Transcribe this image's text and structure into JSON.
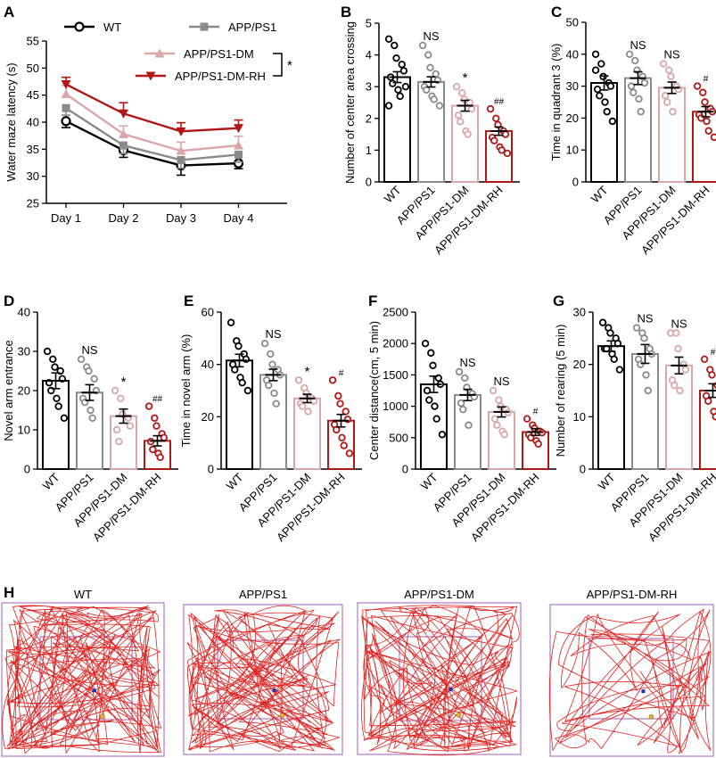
{
  "figure": {
    "colors": {
      "WT": "#000000",
      "APP/PS1": "#8a8a8a",
      "APP/PS1-DM": "#d9a7a7",
      "APP/PS1-DM-RH": "#b01818"
    }
  },
  "chart_data": [
    {
      "panel": "A",
      "type": "line",
      "categories": [
        "Day 1",
        "Day 2",
        "Day 3",
        "Day 4"
      ],
      "ylabel": "Water maze latency (s)",
      "ylim": [
        25,
        55
      ],
      "yticks": [
        25,
        30,
        35,
        40,
        45,
        50,
        55
      ],
      "series": [
        {
          "name": "WT",
          "values": [
            40.2,
            34.8,
            32.0,
            32.4
          ],
          "err": [
            1.2,
            1.3,
            1.8,
            1.0
          ],
          "marker": "circle-open"
        },
        {
          "name": "APP/PS1",
          "values": [
            42.6,
            35.7,
            33.0,
            34.0
          ],
          "err": [
            1.3,
            1.5,
            1.5,
            1.4
          ],
          "marker": "square"
        },
        {
          "name": "APP/PS1-DM",
          "values": [
            45.2,
            37.8,
            34.7,
            35.7
          ],
          "err": [
            1.6,
            1.5,
            1.6,
            1.7
          ],
          "marker": "triangle"
        },
        {
          "name": "APP/PS1-DM-RH",
          "values": [
            47.0,
            41.6,
            38.3,
            38.9
          ],
          "err": [
            1.3,
            2.0,
            1.6,
            1.5
          ],
          "marker": "triangle-down"
        }
      ],
      "annotation": "*"
    },
    {
      "panel": "B",
      "type": "bar",
      "ylabel": "Number of center area crossing",
      "ylim": [
        0,
        5
      ],
      "yticks": [
        0,
        1,
        2,
        3,
        4,
        5
      ],
      "categories": [
        "WT",
        "APP/PS1",
        "APP/PS1-DM",
        "APP/PS1-DM-RH"
      ],
      "values": [
        3.3,
        3.15,
        2.4,
        1.6
      ],
      "err": [
        0.17,
        0.16,
        0.17,
        0.13
      ],
      "sig": [
        "",
        "NS",
        "*",
        "##"
      ],
      "points": [
        [
          4.5,
          4.3,
          3.9,
          3.7,
          3.5,
          3.3,
          3.1,
          2.9,
          2.7,
          3.0,
          2.4
        ],
        [
          4.3,
          4.0,
          3.6,
          3.4,
          3.2,
          3.0,
          2.9,
          2.7,
          2.6,
          2.4
        ],
        [
          3.0,
          2.8,
          2.6,
          2.5,
          2.3,
          2.1,
          1.9,
          1.6,
          1.5
        ],
        [
          2.3,
          2.0,
          1.8,
          1.6,
          1.5,
          1.4,
          1.3,
          1.1,
          1.0,
          0.9
        ]
      ]
    },
    {
      "panel": "C",
      "type": "bar",
      "ylabel": "Time in quadrant 3 (%)",
      "ylim": [
        0,
        50
      ],
      "yticks": [
        0,
        10,
        20,
        30,
        40,
        50
      ],
      "categories": [
        "WT",
        "APP/PS1",
        "APP/PS1-DM",
        "APP/PS1-DM-RH"
      ],
      "values": [
        31,
        32.5,
        29.5,
        22
      ],
      "err": [
        2.2,
        2.0,
        1.8,
        1.6
      ],
      "sig": [
        "",
        "NS",
        "NS",
        "#"
      ],
      "points": [
        [
          40,
          37,
          33,
          31,
          30,
          29,
          27,
          25,
          22,
          19,
          35
        ],
        [
          40,
          38,
          35,
          33,
          31,
          30,
          28,
          26,
          22
        ],
        [
          37,
          35,
          33,
          30,
          29,
          27,
          25,
          22
        ],
        [
          30,
          28,
          25,
          23,
          22,
          21,
          20,
          19,
          16,
          14
        ]
      ]
    },
    {
      "panel": "D",
      "type": "bar",
      "ylabel": "Novel arm entrance",
      "ylim": [
        0,
        40
      ],
      "yticks": [
        0,
        10,
        20,
        30,
        40
      ],
      "categories": [
        "WT",
        "APP/PS1",
        "APP/PS1-DM",
        "APP/PS1-DM-RH"
      ],
      "values": [
        22.5,
        19.5,
        13.5,
        7.2
      ],
      "err": [
        2.0,
        2.0,
        1.8,
        1.3
      ],
      "sig": [
        "",
        "NS",
        "*",
        "##"
      ],
      "points": [
        [
          30,
          28,
          26,
          25,
          23,
          22,
          20,
          18,
          16,
          13
        ],
        [
          28,
          26,
          25,
          23,
          20,
          18,
          17,
          15,
          13
        ],
        [
          20,
          18,
          14,
          13,
          11,
          10,
          7
        ],
        [
          16,
          13,
          11,
          9,
          8,
          7,
          5,
          4,
          3
        ]
      ]
    },
    {
      "panel": "E",
      "type": "bar",
      "ylabel": "Time in novel arm (%)",
      "ylim": [
        0,
        60
      ],
      "yticks": [
        0,
        20,
        40,
        60
      ],
      "categories": [
        "WT",
        "APP/PS1",
        "APP/PS1-DM",
        "APP/PS1-DM-RH"
      ],
      "values": [
        41.5,
        36,
        27,
        18.5
      ],
      "err": [
        2.4,
        2.2,
        1.6,
        2.4
      ],
      "sig": [
        "",
        "NS",
        "*",
        "#"
      ],
      "points": [
        [
          56,
          49,
          47,
          44,
          42,
          40,
          38,
          35,
          33,
          30
        ],
        [
          48,
          44,
          40,
          38,
          36,
          34,
          32,
          29,
          25
        ],
        [
          34,
          31,
          29,
          27,
          26,
          25,
          24,
          22
        ],
        [
          34,
          28,
          25,
          22,
          19,
          17,
          15,
          12,
          9,
          6
        ]
      ]
    },
    {
      "panel": "F",
      "type": "bar",
      "ylabel": "Center distance(cm, 5 min)",
      "ylim": [
        0,
        2500
      ],
      "yticks": [
        0,
        500,
        1000,
        1500,
        2000,
        2500
      ],
      "categories": [
        "WT",
        "APP/PS1",
        "APP/PS1-DM",
        "APP/PS1-DM-RH"
      ],
      "values": [
        1350,
        1180,
        910,
        590
      ],
      "err": [
        130,
        90,
        80,
        55
      ],
      "sig": [
        "",
        "NS",
        "NS",
        "#"
      ],
      "points": [
        [
          2000,
          1850,
          1650,
          1450,
          1350,
          1250,
          1100,
          1000,
          800,
          550
        ],
        [
          1550,
          1450,
          1300,
          1200,
          1150,
          1050,
          950,
          700
        ],
        [
          1250,
          1100,
          1000,
          950,
          900,
          800,
          700,
          600,
          550
        ],
        [
          800,
          700,
          650,
          600,
          580,
          550,
          500,
          450,
          400
        ]
      ]
    },
    {
      "panel": "G",
      "type": "bar",
      "ylabel": "Number of rearing (5 min)",
      "ylim": [
        0,
        30
      ],
      "yticks": [
        0,
        10,
        20,
        30
      ],
      "categories": [
        "WT",
        "APP/PS1",
        "APP/PS1-DM",
        "APP/PS1-DM-RH"
      ],
      "values": [
        23.5,
        22,
        19.8,
        15
      ],
      "err": [
        1.0,
        1.8,
        1.6,
        1.3
      ],
      "sig": [
        "",
        "NS",
        "NS",
        "#"
      ],
      "points": [
        [
          28,
          27,
          26,
          25,
          24,
          23,
          23,
          22,
          21,
          19
        ],
        [
          27,
          26,
          25,
          23,
          22,
          21,
          20,
          18,
          15
        ],
        [
          26,
          26,
          23,
          20,
          19,
          17,
          16,
          15
        ],
        [
          21,
          19,
          18,
          16,
          15,
          14,
          13,
          11,
          10
        ]
      ]
    }
  ],
  "panels": {
    "A": "A",
    "B": "B",
    "C": "C",
    "D": "D",
    "E": "E",
    "F": "F",
    "G": "G",
    "H": "H"
  },
  "legend": {
    "wt": "WT",
    "app": "APP/PS1",
    "dm": "APP/PS1-DM",
    "rh": "APP/PS1-DM-RH",
    "sig": "*"
  },
  "tracks": {
    "titles": [
      "WT",
      "APP/PS1",
      "APP/PS1-DM",
      "APP/PS1-DM-RH"
    ],
    "line_color": "#e0201e",
    "frame_color": "#b07ac8"
  }
}
